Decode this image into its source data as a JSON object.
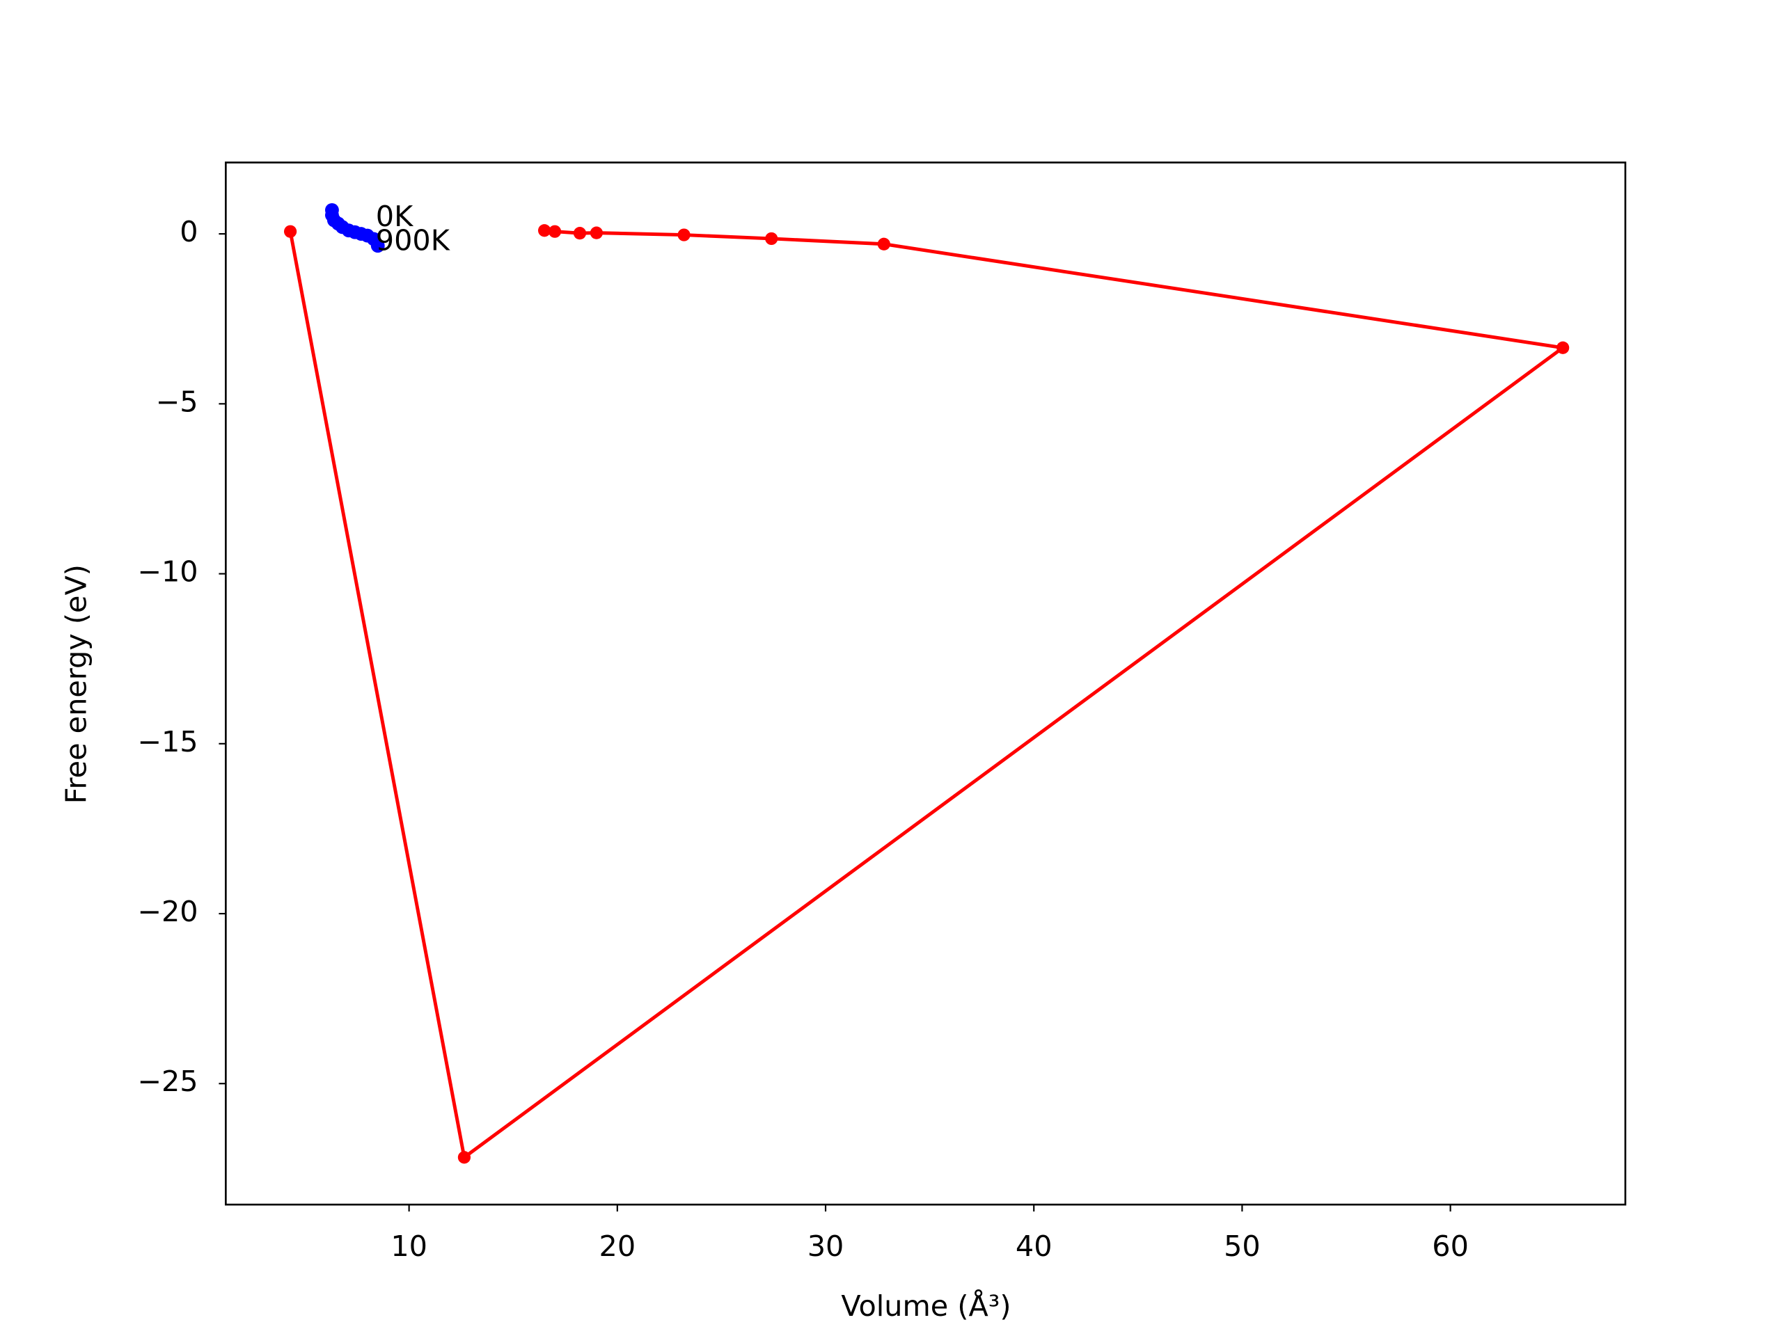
{
  "chart_data": {
    "type": "line",
    "xlabel": "Volume (Å³)",
    "ylabel": "Free energy (eV)",
    "xlim": [
      1.2,
      68.4
    ],
    "ylim": [
      -28.56,
      2.1
    ],
    "xticks": [
      10,
      20,
      30,
      40,
      50,
      60
    ],
    "yticks": [
      {
        "value": -25,
        "label": "−25"
      },
      {
        "value": -20,
        "label": "−20"
      },
      {
        "value": -15,
        "label": "−15"
      },
      {
        "value": -10,
        "label": "−10"
      },
      {
        "value": -5,
        "label": "−5"
      },
      0
    ],
    "series": [
      {
        "color": "#ff0000",
        "marker": "dot-line",
        "x": [
          4.3,
          12.65,
          65.4,
          32.8,
          27.4,
          23.2,
          19.0,
          18.2,
          17.0,
          16.5
        ],
        "values": [
          0.07,
          -27.17,
          -3.35,
          -0.3,
          -0.14,
          -0.03,
          0.03,
          0.02,
          0.07,
          0.1
        ]
      },
      {
        "color": "#0000ff",
        "marker": "dot",
        "x": [
          6.3,
          6.3,
          6.4,
          6.6,
          6.8,
          7.1,
          7.4,
          7.7,
          8.0,
          8.3,
          8.5
        ],
        "values": [
          0.7,
          0.55,
          0.4,
          0.3,
          0.2,
          0.1,
          0.05,
          0.0,
          -0.05,
          -0.15,
          -0.35
        ]
      }
    ],
    "annotations": [
      {
        "text": "0K",
        "x": 8.4,
        "y": 0.45
      },
      {
        "text": "900K",
        "x": 8.4,
        "y": -0.25
      }
    ]
  }
}
